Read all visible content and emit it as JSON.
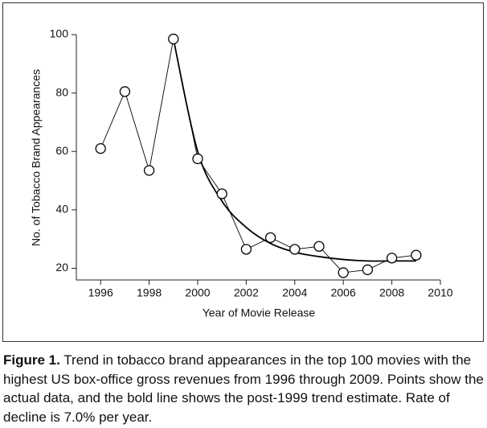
{
  "chart_data": {
    "type": "line",
    "x_label": "Year of Movie Release",
    "y_label": "No. of Tobacco Brand Appearances",
    "x": [
      1996,
      1997,
      1998,
      1999,
      2000,
      2001,
      2002,
      2003,
      2004,
      2005,
      2006,
      2007,
      2008,
      2009
    ],
    "series": [
      {
        "color": "#000000",
        "values": [
          61,
          80.5,
          53.5,
          98.5,
          57.5,
          45.5,
          26.5,
          30.5,
          26.5,
          27.5,
          18.5,
          19.5,
          23.5,
          24.5
        ]
      },
      {
        "color": "#000000",
        "values": [
          null,
          null,
          null,
          98.5,
          60,
          43,
          34,
          28.5,
          25.5,
          24,
          23,
          22.5,
          22.5,
          22.5
        ]
      }
    ],
    "xlim": [
      1995,
      2010
    ],
    "xticks": [
      1996,
      1998,
      2000,
      2002,
      2004,
      2006,
      2008,
      2010
    ],
    "ylim": [
      16,
      100
    ],
    "yticks": [
      20,
      40,
      60,
      80,
      100
    ],
    "caption_label": "Figure 1.",
    "caption": "Trend in tobacco brand appearances in the top 100 movies with the highest US box-office gross revenues from 1996 through 2009. Points show the actual data, and the bold line shows the post-1999 trend estimate. Rate of decline is 7.0% per year."
  }
}
